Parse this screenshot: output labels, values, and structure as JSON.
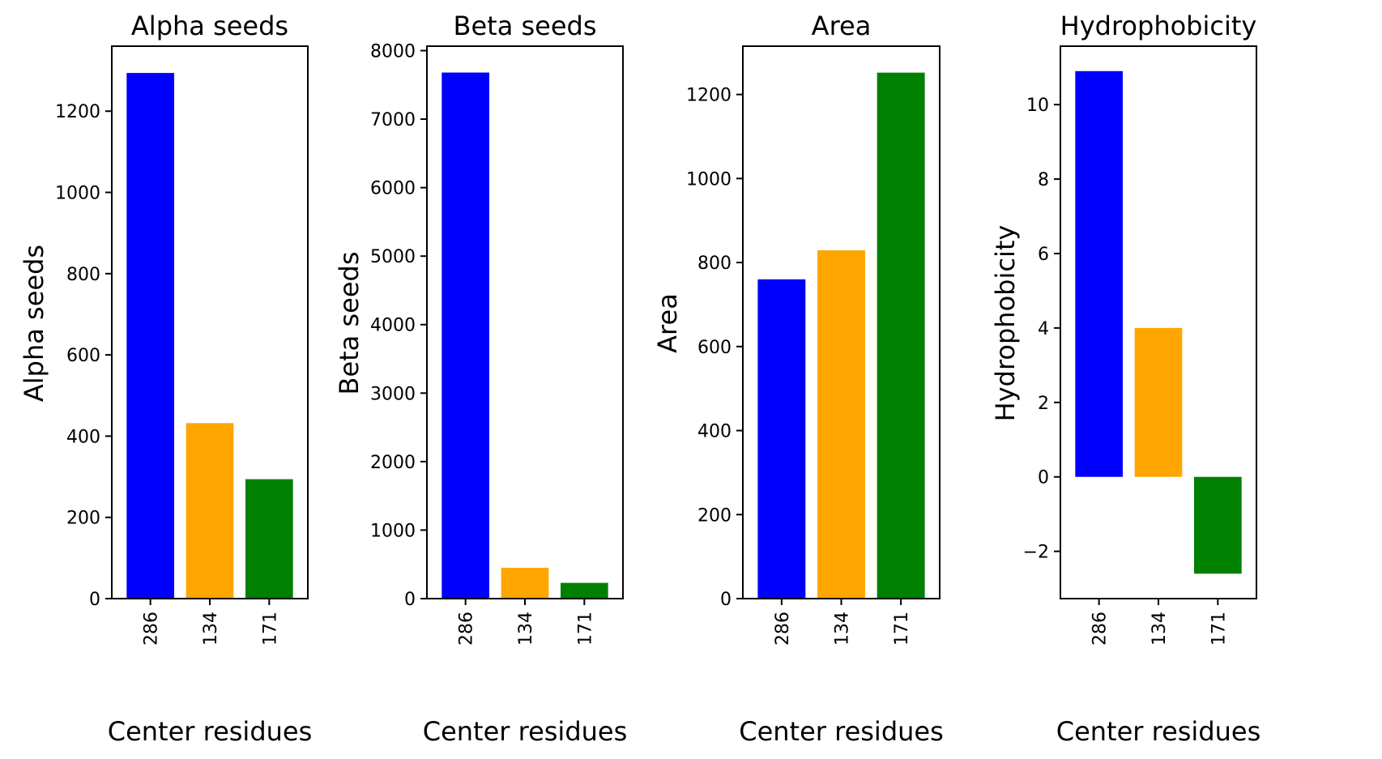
{
  "chart_data": [
    {
      "type": "bar",
      "title": "Alpha seeds",
      "xlabel": "Center residues",
      "ylabel": "Alpha seeds",
      "categories": [
        "286",
        "134",
        "171"
      ],
      "values": [
        1294,
        432,
        294
      ],
      "colors": [
        "#0000ff",
        "#ffa500",
        "#008000"
      ],
      "ylim": [
        0,
        1360
      ],
      "yticks": [
        0,
        200,
        400,
        600,
        800,
        1000,
        1200
      ],
      "ytick_labels": [
        "0",
        "200",
        "400",
        "600",
        "800",
        "1000",
        "1200"
      ]
    },
    {
      "type": "bar",
      "title": "Beta seeds",
      "xlabel": "Center residues",
      "ylabel": "Beta seeds",
      "categories": [
        "286",
        "134",
        "171"
      ],
      "values": [
        7680,
        450,
        230
      ],
      "colors": [
        "#0000ff",
        "#ffa500",
        "#008000"
      ],
      "ylim": [
        0,
        8065
      ],
      "yticks": [
        0,
        1000,
        2000,
        3000,
        4000,
        5000,
        6000,
        7000,
        8000
      ],
      "ytick_labels": [
        "0",
        "1000",
        "2000",
        "3000",
        "4000",
        "5000",
        "6000",
        "7000",
        "8000"
      ]
    },
    {
      "type": "bar",
      "title": "Area",
      "xlabel": "Center residues",
      "ylabel": "Area",
      "categories": [
        "286",
        "134",
        "171"
      ],
      "values": [
        760,
        829,
        1252
      ],
      "colors": [
        "#0000ff",
        "#ffa500",
        "#008000"
      ],
      "ylim": [
        0,
        1315
      ],
      "yticks": [
        0,
        200,
        400,
        600,
        800,
        1000,
        1200
      ],
      "ytick_labels": [
        "0",
        "200",
        "400",
        "600",
        "800",
        "1000",
        "1200"
      ]
    },
    {
      "type": "bar",
      "title": "Hydrophobicity",
      "xlabel": "Center residues",
      "ylabel": "Hydrophobicity",
      "categories": [
        "286",
        "134",
        "171"
      ],
      "values": [
        10.9,
        4.0,
        -2.6
      ],
      "colors": [
        "#0000ff",
        "#ffa500",
        "#008000"
      ],
      "ylim": [
        -3.27,
        11.57
      ],
      "yticks": [
        -2,
        0,
        2,
        4,
        6,
        8,
        10
      ],
      "ytick_labels": [
        "−2",
        "0",
        "2",
        "4",
        "6",
        "8",
        "10"
      ]
    }
  ]
}
